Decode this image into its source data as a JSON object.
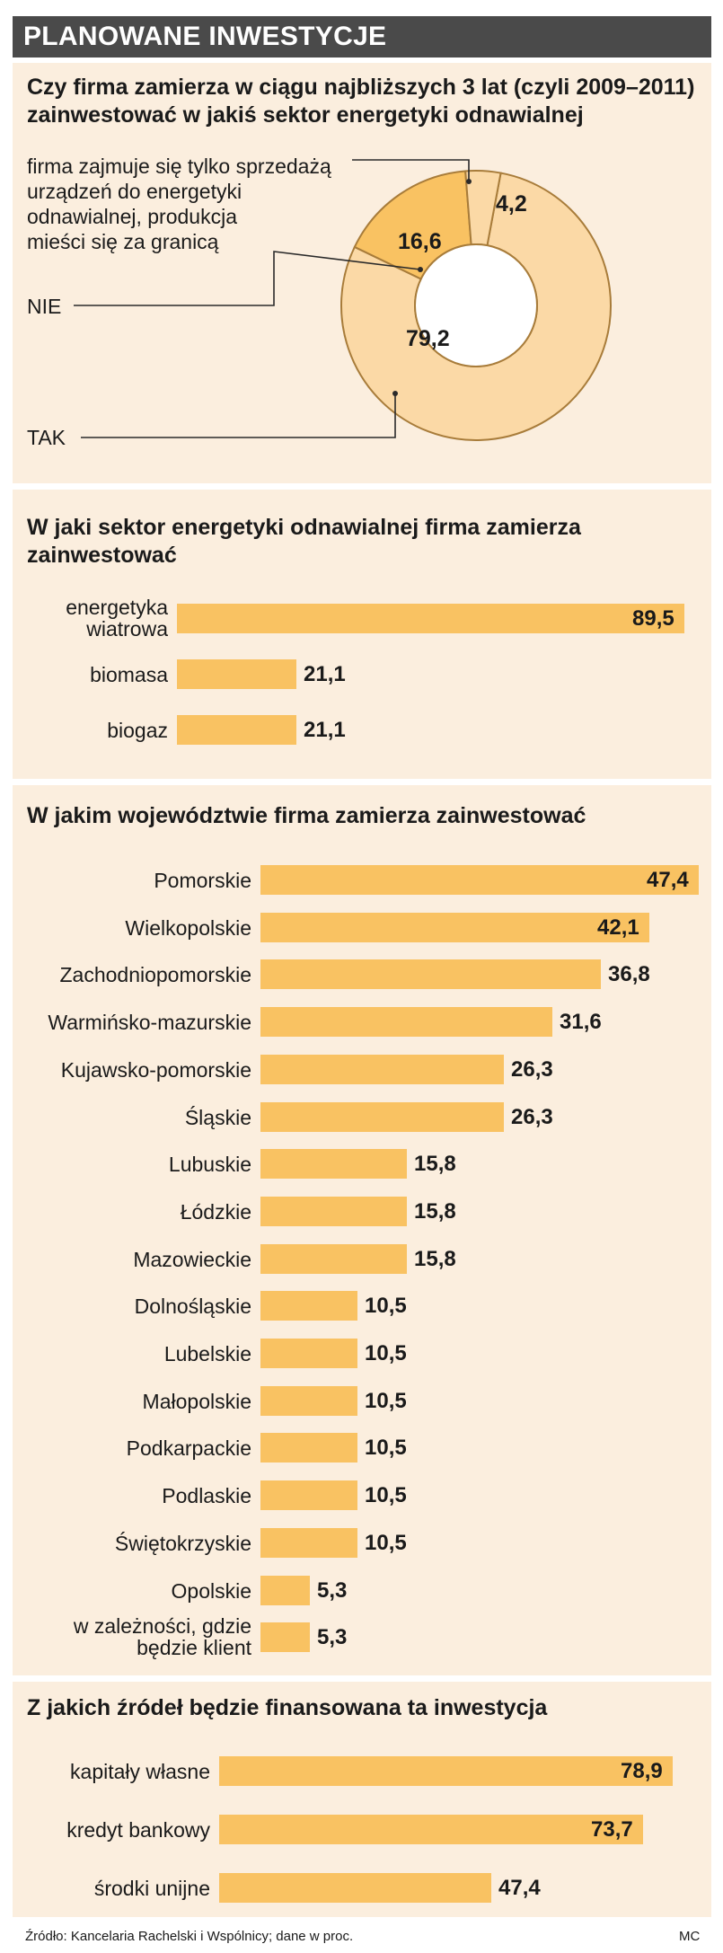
{
  "header": {
    "title": "PLANOWANE INWESTYCJE"
  },
  "colors": {
    "bar": "#f9c262",
    "panel": "#fbeede",
    "donut_tak": "#fbd9a6",
    "donut_nie": "#f9c262",
    "donut_foreign": "#fbd9a6",
    "stroke": "#a87c3a"
  },
  "chart_data": [
    {
      "type": "pie",
      "question": "Czy firma zamierza w ciągu najbliższych 3 lat (czyli 2009–2011) zainwestować w jakiś sektor energetyki odnawialnej",
      "slices": [
        {
          "label": "TAK",
          "value": 79.2,
          "value_label": "79,2"
        },
        {
          "label": "NIE",
          "value": 16.6,
          "value_label": "16,6"
        },
        {
          "label": "firma zajmuje się tylko sprzedażą urządzeń do energetyki odnawialnej, produkcja mieści się za granicą",
          "value": 4.2,
          "value_label": "4,2"
        }
      ],
      "label_lines": [
        "firma zajmuje się tylko sprzedażą",
        "urządzeń do energetyki",
        "odnawialnej, produkcja",
        "mieści się za granicą"
      ]
    },
    {
      "type": "bar",
      "title": "W jaki sektor energetyki odnawialnej firma zamierza zainwestować",
      "categories": [
        "energetyka wiatrowa",
        "biomasa",
        "biogaz"
      ],
      "values": [
        89.5,
        21.1,
        21.1
      ],
      "value_labels": [
        "89,5",
        "21,1",
        "21,1"
      ],
      "ylim": [
        0,
        89.5
      ]
    },
    {
      "type": "bar",
      "title": "W jakim województwie firma zamierza zainwestować",
      "categories": [
        "Pomorskie",
        "Wielkopolskie",
        "Zachodniopomorskie",
        "Warmińsko-mazurskie",
        "Kujawsko-pomorskie",
        "Śląskie",
        "Lubuskie",
        "Łódzkie",
        "Mazowieckie",
        "Dolnośląskie",
        "Lubelskie",
        "Małopolskie",
        "Podkarpackie",
        "Podlaskie",
        "Świętokrzyskie",
        "Opolskie",
        "w zależności, gdzie będzie klient"
      ],
      "values": [
        47.4,
        42.1,
        36.8,
        31.6,
        26.3,
        26.3,
        15.8,
        15.8,
        15.8,
        10.5,
        10.5,
        10.5,
        10.5,
        10.5,
        10.5,
        5.3,
        5.3
      ],
      "value_labels": [
        "47,4",
        "42,1",
        "36,8",
        "31,6",
        "26,3",
        "26,3",
        "15,8",
        "15,8",
        "15,8",
        "10,5",
        "10,5",
        "10,5",
        "10,5",
        "10,5",
        "10,5",
        "5,3",
        "5,3"
      ],
      "ylim": [
        0,
        47.4
      ]
    },
    {
      "type": "bar",
      "title": "Z jakich źródeł będzie finansowana ta inwestycja",
      "categories": [
        "kapitały własne",
        "kredyt bankowy",
        "środki unijne"
      ],
      "values": [
        78.9,
        73.7,
        47.4
      ],
      "value_labels": [
        "78,9",
        "73,7",
        "47,4"
      ],
      "ylim": [
        0,
        78.9
      ]
    }
  ],
  "footer": {
    "source": "Źródło: Kancelaria Rachelski i Wspólnicy; dane w proc.",
    "credit": "MC"
  }
}
